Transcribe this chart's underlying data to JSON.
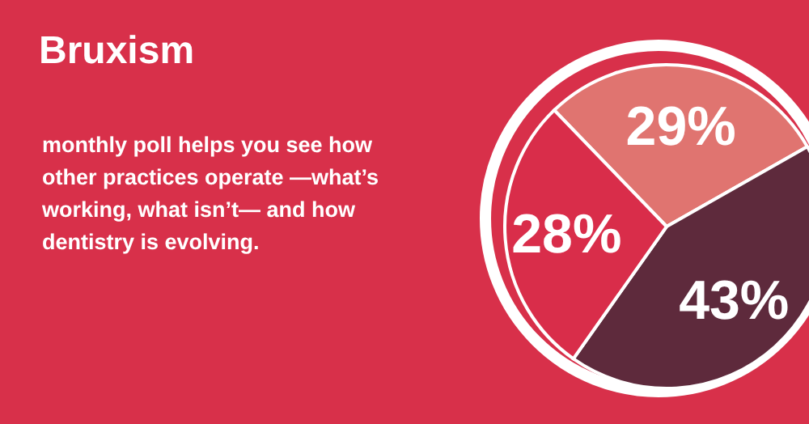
{
  "chart_data": {
    "type": "pie",
    "title": "Bruxism",
    "subtitle": "monthly poll helps you see how other practices operate —what’s working, what isn’t— and how dentistry is evolving.",
    "categories": [
      null,
      null,
      null
    ],
    "values": [
      29,
      43,
      28
    ],
    "colors": [
      "#e07470",
      "#5e2a3c",
      "#d92d4a"
    ],
    "value_labels": [
      "29%",
      "43%",
      "28%"
    ],
    "legend": false
  }
}
